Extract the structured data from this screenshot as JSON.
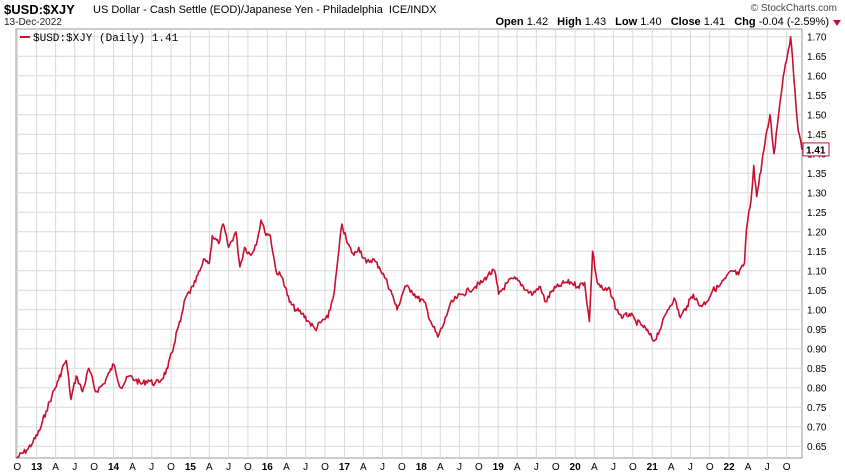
{
  "header": {
    "symbol": "$USD:$XJY",
    "description": "US Dollar - Cash Settle (EOD)/Japanese Yen - Philadelphia",
    "exchange": "ICE/INDX",
    "date": "13-Dec-2022",
    "logo": "© StockCharts.com",
    "ohlc": {
      "open_label": "Open",
      "open": "1.42",
      "high_label": "High",
      "high": "1.43",
      "low_label": "Low",
      "low": "1.40",
      "close_label": "Close",
      "close": "1.41",
      "chg_label": "Chg",
      "chg": "-0.04 (-2.59%)"
    },
    "change_direction_icon": "triangle-down-icon"
  },
  "legend": {
    "label": "$USD:$XJY (Daily) 1.41"
  },
  "colors": {
    "line": "#c8102e",
    "grid": "#d9d9d9"
  },
  "chart_data": {
    "type": "line",
    "series": [
      {
        "name": "$USD:$XJY (Daily)",
        "points": [
          [
            "2012-09-28",
            0.62
          ],
          [
            "2012-11-15",
            0.64
          ],
          [
            "2012-12-14",
            0.66
          ],
          [
            "2013-01-15",
            0.69
          ],
          [
            "2013-02-15",
            0.74
          ],
          [
            "2013-03-15",
            0.78
          ],
          [
            "2013-04-15",
            0.82
          ],
          [
            "2013-05-10",
            0.86
          ],
          [
            "2013-05-22",
            0.87
          ],
          [
            "2013-06-13",
            0.77
          ],
          [
            "2013-07-08",
            0.83
          ],
          [
            "2013-08-07",
            0.79
          ],
          [
            "2013-09-06",
            0.85
          ],
          [
            "2013-10-08",
            0.79
          ],
          [
            "2013-11-15",
            0.81
          ],
          [
            "2013-12-13",
            0.84
          ],
          [
            "2014-01-02",
            0.86
          ],
          [
            "2014-02-04",
            0.8
          ],
          [
            "2014-03-15",
            0.83
          ],
          [
            "2014-04-15",
            0.82
          ],
          [
            "2014-05-15",
            0.81
          ],
          [
            "2014-06-15",
            0.82
          ],
          [
            "2014-07-15",
            0.81
          ],
          [
            "2014-08-15",
            0.82
          ],
          [
            "2014-09-15",
            0.85
          ],
          [
            "2014-10-15",
            0.91
          ],
          [
            "2014-10-31",
            0.95
          ],
          [
            "2014-11-15",
            0.97
          ],
          [
            "2014-12-08",
            1.03
          ],
          [
            "2015-01-15",
            1.06
          ],
          [
            "2015-02-15",
            1.1
          ],
          [
            "2015-03-10",
            1.13
          ],
          [
            "2015-04-01",
            1.12
          ],
          [
            "2015-04-15",
            1.19
          ],
          [
            "2015-05-15",
            1.17
          ],
          [
            "2015-06-05",
            1.22
          ],
          [
            "2015-07-01",
            1.16
          ],
          [
            "2015-08-05",
            1.2
          ],
          [
            "2015-08-24",
            1.11
          ],
          [
            "2015-09-15",
            1.16
          ],
          [
            "2015-10-15",
            1.14
          ],
          [
            "2015-11-15",
            1.18
          ],
          [
            "2015-12-02",
            1.23
          ],
          [
            "2015-12-20",
            1.2
          ],
          [
            "2016-01-15",
            1.19
          ],
          [
            "2016-02-11",
            1.1
          ],
          [
            "2016-03-15",
            1.08
          ],
          [
            "2016-04-15",
            1.02
          ],
          [
            "2016-05-15",
            1.0
          ],
          [
            "2016-06-15",
            0.99
          ],
          [
            "2016-07-15",
            0.97
          ],
          [
            "2016-08-15",
            0.95
          ],
          [
            "2016-09-15",
            0.97
          ],
          [
            "2016-10-15",
            0.98
          ],
          [
            "2016-11-15",
            1.05
          ],
          [
            "2016-12-20",
            1.22
          ],
          [
            "2017-01-15",
            1.17
          ],
          [
            "2017-02-15",
            1.14
          ],
          [
            "2017-03-10",
            1.16
          ],
          [
            "2017-04-15",
            1.12
          ],
          [
            "2017-05-15",
            1.13
          ],
          [
            "2017-06-15",
            1.11
          ],
          [
            "2017-07-15",
            1.08
          ],
          [
            "2017-08-15",
            1.04
          ],
          [
            "2017-09-08",
            1.0
          ],
          [
            "2017-10-15",
            1.06
          ],
          [
            "2017-11-15",
            1.05
          ],
          [
            "2017-12-15",
            1.03
          ],
          [
            "2018-01-15",
            1.02
          ],
          [
            "2018-02-15",
            0.97
          ],
          [
            "2018-03-20",
            0.93
          ],
          [
            "2018-04-15",
            0.96
          ],
          [
            "2018-05-15",
            1.01
          ],
          [
            "2018-06-15",
            1.03
          ],
          [
            "2018-07-15",
            1.04
          ],
          [
            "2018-08-15",
            1.05
          ],
          [
            "2018-09-15",
            1.06
          ],
          [
            "2018-10-15",
            1.07
          ],
          [
            "2018-11-15",
            1.09
          ],
          [
            "2018-12-15",
            1.1
          ],
          [
            "2019-01-03",
            1.04
          ],
          [
            "2019-02-15",
            1.07
          ],
          [
            "2019-03-15",
            1.08
          ],
          [
            "2019-04-15",
            1.07
          ],
          [
            "2019-05-15",
            1.05
          ],
          [
            "2019-06-15",
            1.04
          ],
          [
            "2019-07-15",
            1.06
          ],
          [
            "2019-08-15",
            1.02
          ],
          [
            "2019-09-15",
            1.05
          ],
          [
            "2019-10-15",
            1.06
          ],
          [
            "2019-11-15",
            1.07
          ],
          [
            "2019-12-15",
            1.07
          ],
          [
            "2020-01-15",
            1.06
          ],
          [
            "2020-02-15",
            1.07
          ],
          [
            "2020-03-09",
            0.97
          ],
          [
            "2020-03-24",
            1.15
          ],
          [
            "2020-04-15",
            1.07
          ],
          [
            "2020-05-15",
            1.05
          ],
          [
            "2020-06-15",
            1.05
          ],
          [
            "2020-07-15",
            1.0
          ],
          [
            "2020-08-15",
            0.98
          ],
          [
            "2020-09-15",
            0.99
          ],
          [
            "2020-10-15",
            0.97
          ],
          [
            "2020-11-15",
            0.96
          ],
          [
            "2020-12-15",
            0.94
          ],
          [
            "2021-01-10",
            0.92
          ],
          [
            "2021-02-15",
            0.96
          ],
          [
            "2021-03-15",
            1.0
          ],
          [
            "2021-04-15",
            1.03
          ],
          [
            "2021-05-15",
            0.98
          ],
          [
            "2021-06-15",
            1.01
          ],
          [
            "2021-07-15",
            1.04
          ],
          [
            "2021-08-15",
            1.01
          ],
          [
            "2021-09-15",
            1.02
          ],
          [
            "2021-10-15",
            1.05
          ],
          [
            "2021-11-15",
            1.06
          ],
          [
            "2021-12-15",
            1.08
          ],
          [
            "2022-01-15",
            1.1
          ],
          [
            "2022-02-15",
            1.09
          ],
          [
            "2022-03-15",
            1.12
          ],
          [
            "2022-03-25",
            1.21
          ],
          [
            "2022-04-15",
            1.28
          ],
          [
            "2022-04-28",
            1.37
          ],
          [
            "2022-05-12",
            1.29
          ],
          [
            "2022-06-15",
            1.41
          ],
          [
            "2022-07-14",
            1.5
          ],
          [
            "2022-08-02",
            1.4
          ],
          [
            "2022-08-30",
            1.53
          ],
          [
            "2022-09-15",
            1.6
          ],
          [
            "2022-10-20",
            1.7
          ],
          [
            "2022-11-10",
            1.56
          ],
          [
            "2022-11-25",
            1.46
          ],
          [
            "2022-12-13",
            1.41
          ]
        ]
      }
    ],
    "y_ticks": [
      "1.70",
      "1.65",
      "1.60",
      "1.55",
      "1.50",
      "1.45",
      "1.40",
      "1.35",
      "1.30",
      "1.25",
      "1.20",
      "1.15",
      "1.10",
      "1.05",
      "1.00",
      "0.95",
      "0.90",
      "0.85",
      "0.80",
      "0.75",
      "0.70",
      "0.65"
    ],
    "y_range": [
      0.62,
      1.72
    ],
    "x_range": [
      "2012-09-25",
      "2022-12-13"
    ],
    "x_ticks": [
      [
        "2012-10-01",
        "O",
        false
      ],
      [
        "2013-01-01",
        "13",
        true
      ],
      [
        "2013-04-01",
        "A",
        false
      ],
      [
        "2013-07-01",
        "J",
        false
      ],
      [
        "2013-10-01",
        "O",
        false
      ],
      [
        "2014-01-01",
        "14",
        true
      ],
      [
        "2014-04-01",
        "A",
        false
      ],
      [
        "2014-07-01",
        "J",
        false
      ],
      [
        "2014-10-01",
        "O",
        false
      ],
      [
        "2015-01-01",
        "15",
        true
      ],
      [
        "2015-04-01",
        "A",
        false
      ],
      [
        "2015-07-01",
        "J",
        false
      ],
      [
        "2015-10-01",
        "O",
        false
      ],
      [
        "2016-01-01",
        "16",
        true
      ],
      [
        "2016-04-01",
        "A",
        false
      ],
      [
        "2016-07-01",
        "J",
        false
      ],
      [
        "2016-10-01",
        "O",
        false
      ],
      [
        "2017-01-01",
        "17",
        true
      ],
      [
        "2017-04-01",
        "A",
        false
      ],
      [
        "2017-07-01",
        "J",
        false
      ],
      [
        "2017-10-01",
        "O",
        false
      ],
      [
        "2018-01-01",
        "18",
        true
      ],
      [
        "2018-04-01",
        "A",
        false
      ],
      [
        "2018-07-01",
        "J",
        false
      ],
      [
        "2018-10-01",
        "O",
        false
      ],
      [
        "2019-01-01",
        "19",
        true
      ],
      [
        "2019-04-01",
        "A",
        false
      ],
      [
        "2019-07-01",
        "J",
        false
      ],
      [
        "2019-10-01",
        "O",
        false
      ],
      [
        "2020-01-01",
        "20",
        true
      ],
      [
        "2020-04-01",
        "A",
        false
      ],
      [
        "2020-07-01",
        "J",
        false
      ],
      [
        "2020-10-01",
        "O",
        false
      ],
      [
        "2021-01-01",
        "21",
        true
      ],
      [
        "2021-04-01",
        "A",
        false
      ],
      [
        "2021-07-01",
        "J",
        false
      ],
      [
        "2021-10-01",
        "O",
        false
      ],
      [
        "2022-01-01",
        "22",
        true
      ],
      [
        "2022-04-01",
        "A",
        false
      ],
      [
        "2022-07-01",
        "J",
        false
      ],
      [
        "2022-10-01",
        "O",
        false
      ]
    ],
    "last_value_label": "1.41",
    "grid": true,
    "legend_position": "top-left"
  }
}
